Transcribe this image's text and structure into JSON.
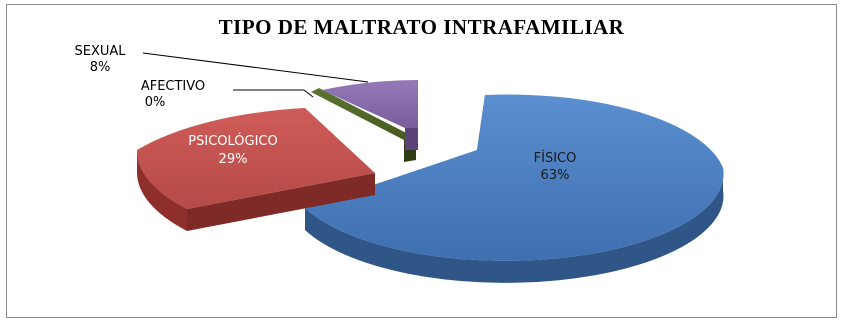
{
  "chart_data": {
    "type": "pie",
    "title": "TIPO DE MALTRATO INTRAFAMILIAR",
    "categories": [
      "FÍSICO",
      "PSICOLÓGICO",
      "AFECTIVO",
      "SEXUAL"
    ],
    "values": [
      63,
      29,
      0,
      8
    ],
    "value_labels": [
      "63%",
      "29%",
      "0%",
      "8%"
    ],
    "colors": {
      "FÍSICO": "#4f81bd",
      "PSICOLÓGICO": "#c0504d",
      "AFECTIVO": "#4f6228",
      "SEXUAL": "#8064a2"
    },
    "style": "3d-exploded",
    "legend": "none"
  }
}
